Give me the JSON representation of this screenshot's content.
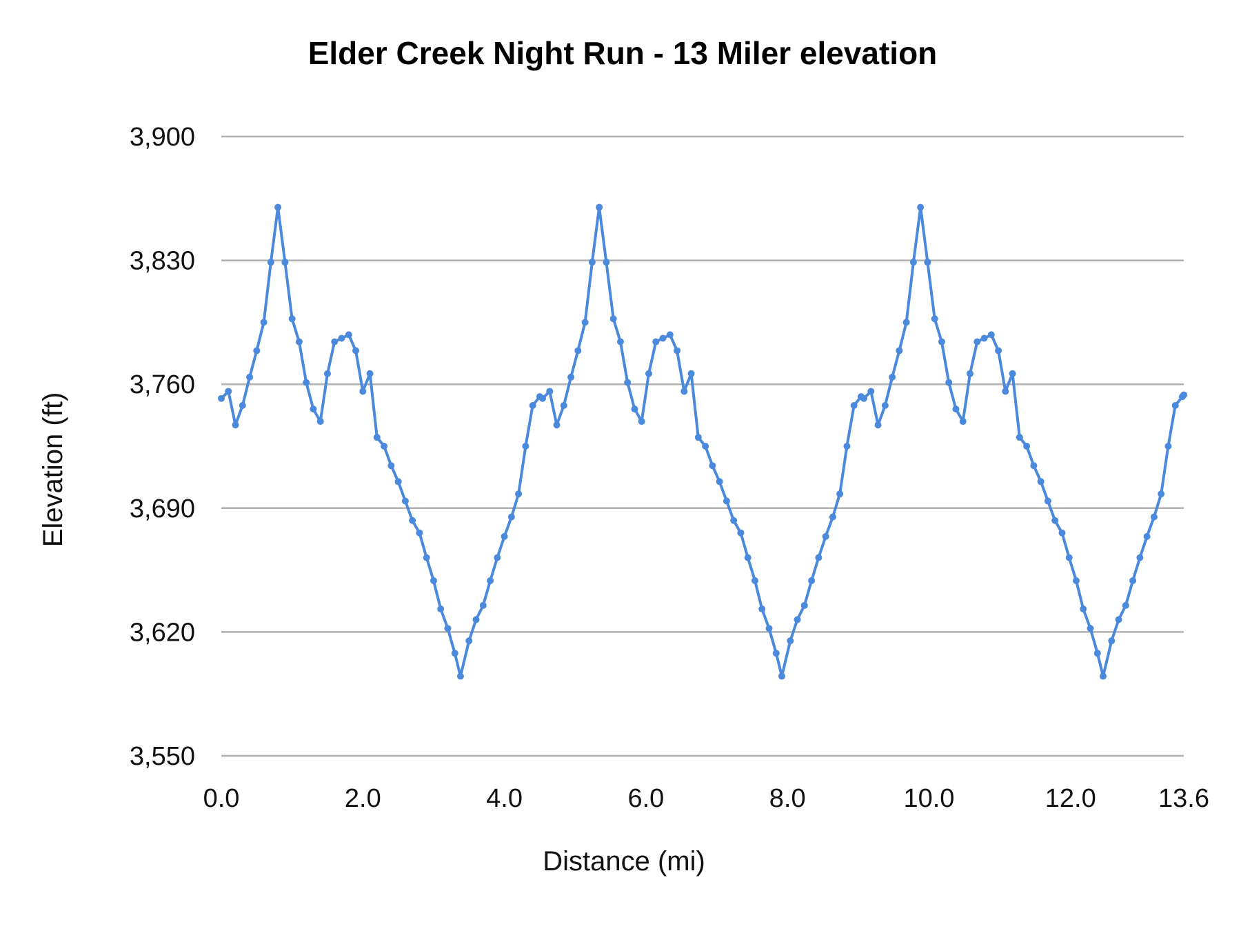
{
  "chart_data": {
    "type": "line",
    "title": "Elder Creek Night Run - 13 Miler elevation",
    "xlabel": "Distance (mi)",
    "ylabel": "Elevation (ft)",
    "xlim": [
      0,
      13.6
    ],
    "ylim": [
      3550,
      3900
    ],
    "x_ticks": [
      "0.0",
      "2.0",
      "4.0",
      "6.0",
      "8.0",
      "10.0",
      "12.0",
      "13.6"
    ],
    "x_tick_values": [
      0,
      2,
      4,
      6,
      8,
      10,
      12,
      13.6
    ],
    "y_ticks": [
      "3,550",
      "3,620",
      "3,690",
      "3,760",
      "3,830",
      "3,900"
    ],
    "y_tick_values": [
      3550,
      3620,
      3690,
      3760,
      3830,
      3900
    ],
    "grid": "horizontal",
    "markers": true,
    "color": "#4a89dc",
    "series": [
      {
        "x": [
          0,
          0.1,
          0.2,
          0.3,
          0.4,
          0.5,
          0.6,
          0.7,
          0.8,
          0.9,
          1.0,
          1.1,
          1.2,
          1.3,
          1.4,
          1.5,
          1.6,
          1.7,
          1.8,
          1.9,
          2.0,
          2.1,
          2.2,
          2.3,
          2.4,
          2.5,
          2.6,
          2.7,
          2.8,
          2.9,
          3.0,
          3.1,
          3.2,
          3.3,
          3.38,
          3.5,
          3.6,
          3.7,
          3.8,
          3.9,
          4.0,
          4.1,
          4.2,
          4.3,
          4.4,
          4.5,
          4.54,
          4.64,
          4.74,
          4.84,
          4.94,
          5.04,
          5.14,
          5.24,
          5.34,
          5.44,
          5.54,
          5.64,
          5.74,
          5.84,
          5.94,
          6.04,
          6.14,
          6.24,
          6.34,
          6.44,
          6.54,
          6.64,
          6.74,
          6.84,
          6.94,
          7.04,
          7.14,
          7.24,
          7.34,
          7.44,
          7.54,
          7.64,
          7.74,
          7.84,
          7.92,
          8.04,
          8.14,
          8.24,
          8.34,
          8.44,
          8.54,
          8.64,
          8.74,
          8.84,
          8.94,
          9.04,
          9.08,
          9.18,
          9.28,
          9.38,
          9.48,
          9.58,
          9.68,
          9.78,
          9.88,
          9.98,
          10.08,
          10.18,
          10.28,
          10.38,
          10.48,
          10.58,
          10.68,
          10.78,
          10.88,
          10.98,
          11.08,
          11.18,
          11.28,
          11.38,
          11.48,
          11.58,
          11.68,
          11.78,
          11.88,
          11.98,
          12.08,
          12.18,
          12.28,
          12.38,
          12.46,
          12.58,
          12.68,
          12.78,
          12.88,
          12.98,
          13.08,
          13.18,
          13.28,
          13.38,
          13.48,
          13.58,
          13.6
        ],
        "y": [
          3752,
          3756,
          3737,
          3748,
          3764,
          3779,
          3795,
          3829,
          3860,
          3829,
          3797,
          3784,
          3761,
          3746,
          3739,
          3766,
          3784,
          3786,
          3788,
          3779,
          3756,
          3766,
          3730,
          3725,
          3714,
          3705,
          3694,
          3683,
          3676,
          3662,
          3649,
          3633,
          3622,
          3608,
          3595,
          3615,
          3627,
          3635,
          3649,
          3662,
          3674,
          3685,
          3698,
          3725,
          3748,
          3753,
          3752,
          3756,
          3737,
          3748,
          3764,
          3779,
          3795,
          3829,
          3860,
          3829,
          3797,
          3784,
          3761,
          3746,
          3739,
          3766,
          3784,
          3786,
          3788,
          3779,
          3756,
          3766,
          3730,
          3725,
          3714,
          3705,
          3694,
          3683,
          3676,
          3662,
          3649,
          3633,
          3622,
          3608,
          3595,
          3615,
          3627,
          3635,
          3649,
          3662,
          3674,
          3685,
          3698,
          3725,
          3748,
          3753,
          3752,
          3756,
          3737,
          3748,
          3764,
          3779,
          3795,
          3829,
          3860,
          3829,
          3797,
          3784,
          3761,
          3746,
          3739,
          3766,
          3784,
          3786,
          3788,
          3779,
          3756,
          3766,
          3730,
          3725,
          3714,
          3705,
          3694,
          3683,
          3676,
          3662,
          3649,
          3633,
          3622,
          3608,
          3595,
          3615,
          3627,
          3635,
          3649,
          3662,
          3674,
          3685,
          3698,
          3725,
          3748,
          3753,
          3754
        ]
      }
    ]
  }
}
